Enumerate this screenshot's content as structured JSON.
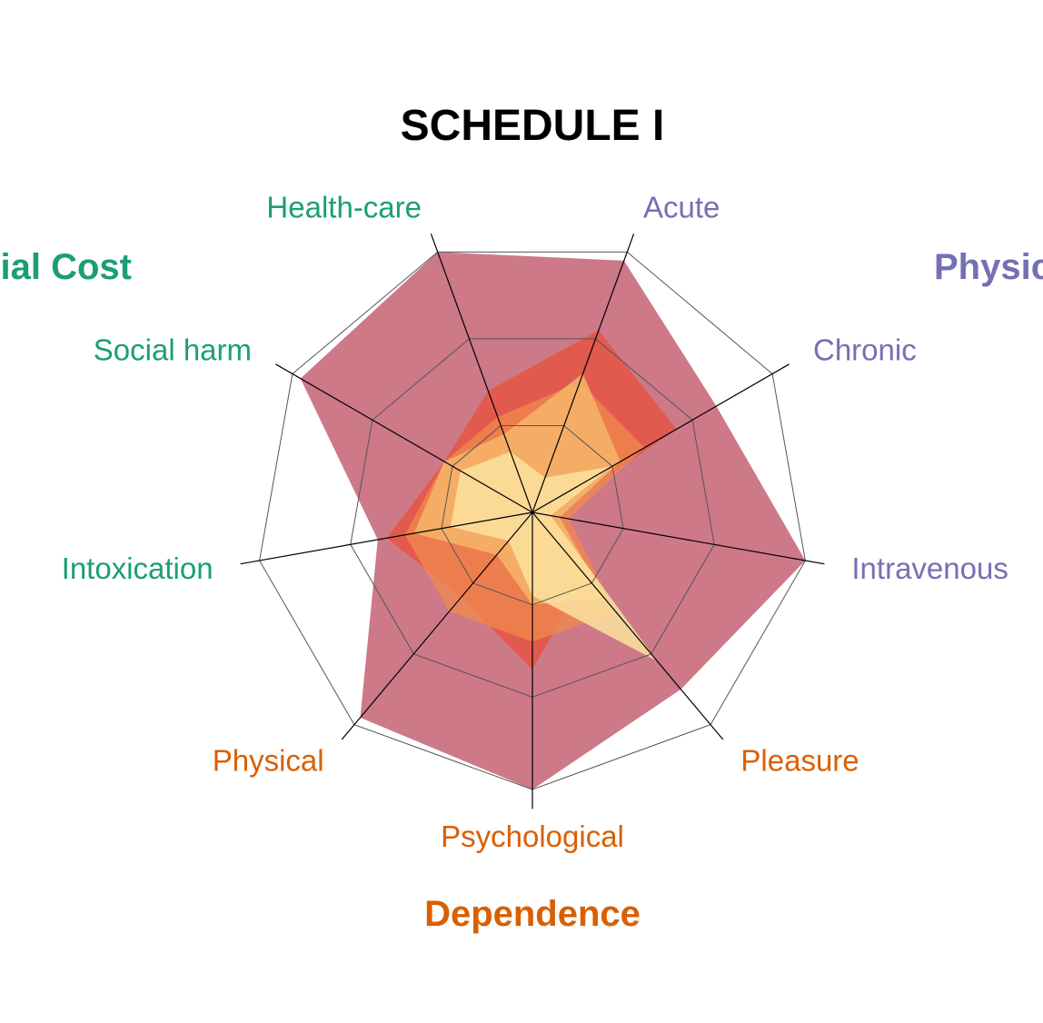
{
  "chart_data": {
    "type": "radar",
    "title": "SCHEDULE I",
    "axes": [
      {
        "label": "Acute",
        "group": "physical"
      },
      {
        "label": "Chronic",
        "group": "physical"
      },
      {
        "label": "Intravenous",
        "group": "physical"
      },
      {
        "label": "Pleasure",
        "group": "dependence"
      },
      {
        "label": "Psychological",
        "group": "dependence"
      },
      {
        "label": "Physical",
        "group": "dependence"
      },
      {
        "label": "Intoxication",
        "group": "social"
      },
      {
        "label": "Social harm",
        "group": "social"
      },
      {
        "label": "Health-care",
        "group": "social"
      }
    ],
    "groups": {
      "physical": {
        "label": "Physical Harm",
        "color": "#7570b3"
      },
      "dependence": {
        "label": "Dependence",
        "color": "#d95f02"
      },
      "social": {
        "label": "Social Cost",
        "color": "#1b9e77"
      }
    },
    "range": [
      0,
      3
    ],
    "rings": 3,
    "series": [
      {
        "color": "#c0586a",
        "opacity": 0.8,
        "values": [
          2.9,
          2.3,
          3.0,
          2.5,
          3.0,
          2.9,
          1.7,
          2.9,
          3.0
        ]
      },
      {
        "color": "#e8503a",
        "opacity": 0.75,
        "values": [
          2.1,
          1.8,
          0.2,
          0.9,
          1.7,
          1.2,
          1.6,
          1.1,
          1.4
        ]
      },
      {
        "color": "#f28a4e",
        "opacity": 0.75,
        "values": [
          1.5,
          1.4,
          0.4,
          1.4,
          1.4,
          1.4,
          1.4,
          1.1,
          1.1
        ]
      },
      {
        "color": "#f6b96b",
        "opacity": 0.8,
        "values": [
          1.6,
          1.1,
          0.3,
          1.2,
          1.0,
          0.6,
          1.3,
          1.1,
          0.9
        ]
      },
      {
        "color": "#fbe29f",
        "opacity": 0.85,
        "values": [
          0.4,
          1.0,
          0.2,
          2.1,
          0.9,
          0.4,
          0.9,
          0.9,
          0.7
        ]
      }
    ]
  }
}
